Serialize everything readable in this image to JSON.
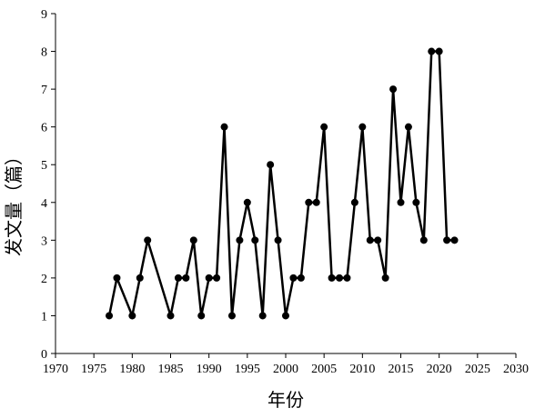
{
  "chart_data": {
    "type": "line",
    "xlabel": "年份",
    "ylabel": "发文量（篇）",
    "xlim": [
      1970,
      2030
    ],
    "ylim": [
      0,
      9
    ],
    "xticks": [
      1970,
      1975,
      1980,
      1985,
      1990,
      1995,
      2000,
      2005,
      2010,
      2015,
      2020,
      2025,
      2030
    ],
    "yticks": [
      0,
      1,
      2,
      3,
      4,
      5,
      6,
      7,
      8,
      9
    ],
    "grid": false,
    "legend": "none",
    "series": [
      {
        "color": "#000000",
        "marker": "circle",
        "points": [
          [
            1977,
            1
          ],
          [
            1978,
            2
          ],
          [
            1980,
            1
          ],
          [
            1981,
            2
          ],
          [
            1982,
            3
          ],
          [
            1985,
            1
          ],
          [
            1986,
            2
          ],
          [
            1987,
            2
          ],
          [
            1988,
            3
          ],
          [
            1989,
            1
          ],
          [
            1990,
            2
          ],
          [
            1991,
            2
          ],
          [
            1992,
            6
          ],
          [
            1993,
            1
          ],
          [
            1994,
            3
          ],
          [
            1995,
            4
          ],
          [
            1996,
            3
          ],
          [
            1997,
            1
          ],
          [
            1998,
            5
          ],
          [
            1999,
            3
          ],
          [
            2000,
            1
          ],
          [
            2001,
            2
          ],
          [
            2002,
            2
          ],
          [
            2003,
            4
          ],
          [
            2004,
            4
          ],
          [
            2005,
            6
          ],
          [
            2006,
            2
          ],
          [
            2007,
            2
          ],
          [
            2008,
            2
          ],
          [
            2009,
            4
          ],
          [
            2010,
            6
          ],
          [
            2011,
            3
          ],
          [
            2012,
            3
          ],
          [
            2013,
            2
          ],
          [
            2014,
            7
          ],
          [
            2015,
            4
          ],
          [
            2016,
            6
          ],
          [
            2017,
            4
          ],
          [
            2018,
            3
          ],
          [
            2019,
            8
          ],
          [
            2020,
            8
          ],
          [
            2021,
            3
          ],
          [
            2022,
            3
          ]
        ]
      }
    ]
  }
}
